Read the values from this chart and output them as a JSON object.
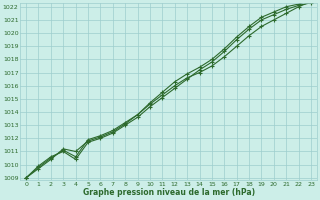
{
  "title": "Graphe pression niveau de la mer (hPa)",
  "xlabel": "Graphe pression niveau de la mer (hPa)",
  "x_values": [
    0,
    1,
    2,
    3,
    4,
    5,
    6,
    7,
    8,
    9,
    10,
    11,
    12,
    13,
    14,
    15,
    16,
    17,
    18,
    19,
    20,
    21,
    22,
    23
  ],
  "line1": [
    1009.0,
    1009.8,
    1010.5,
    1011.1,
    1010.6,
    1011.9,
    1012.2,
    1012.6,
    1013.2,
    1013.8,
    1014.6,
    1015.3,
    1016.0,
    1016.6,
    1017.0,
    1017.5,
    1018.2,
    1019.0,
    1019.8,
    1020.5,
    1021.0,
    1021.5,
    1022.0,
    1022.4
  ],
  "line2": [
    1009.0,
    1009.7,
    1010.4,
    1011.2,
    1011.0,
    1011.8,
    1012.1,
    1012.5,
    1013.1,
    1013.8,
    1014.7,
    1015.5,
    1016.3,
    1016.9,
    1017.4,
    1018.0,
    1018.8,
    1019.7,
    1020.5,
    1021.2,
    1021.6,
    1022.0,
    1022.2,
    1022.5
  ],
  "line3": [
    1009.0,
    1009.9,
    1010.6,
    1011.0,
    1010.4,
    1011.7,
    1012.0,
    1012.4,
    1013.0,
    1013.6,
    1014.4,
    1015.1,
    1015.8,
    1016.5,
    1017.2,
    1017.8,
    1018.6,
    1019.5,
    1020.3,
    1021.0,
    1021.4,
    1021.8,
    1022.1,
    1022.3
  ],
  "ylim_min": 1009,
  "ylim_max": 1022,
  "yticks": [
    1009,
    1010,
    1011,
    1012,
    1013,
    1014,
    1015,
    1016,
    1017,
    1018,
    1019,
    1020,
    1021,
    1022
  ],
  "xticks": [
    0,
    1,
    2,
    3,
    4,
    5,
    6,
    7,
    8,
    9,
    10,
    11,
    12,
    13,
    14,
    15,
    16,
    17,
    18,
    19,
    20,
    21,
    22,
    23
  ],
  "line_color": "#2d6a2d",
  "bg_color": "#cceee8",
  "grid_color": "#9ecece",
  "marker": "+",
  "marker_size": 3.5,
  "line_width": 0.8
}
